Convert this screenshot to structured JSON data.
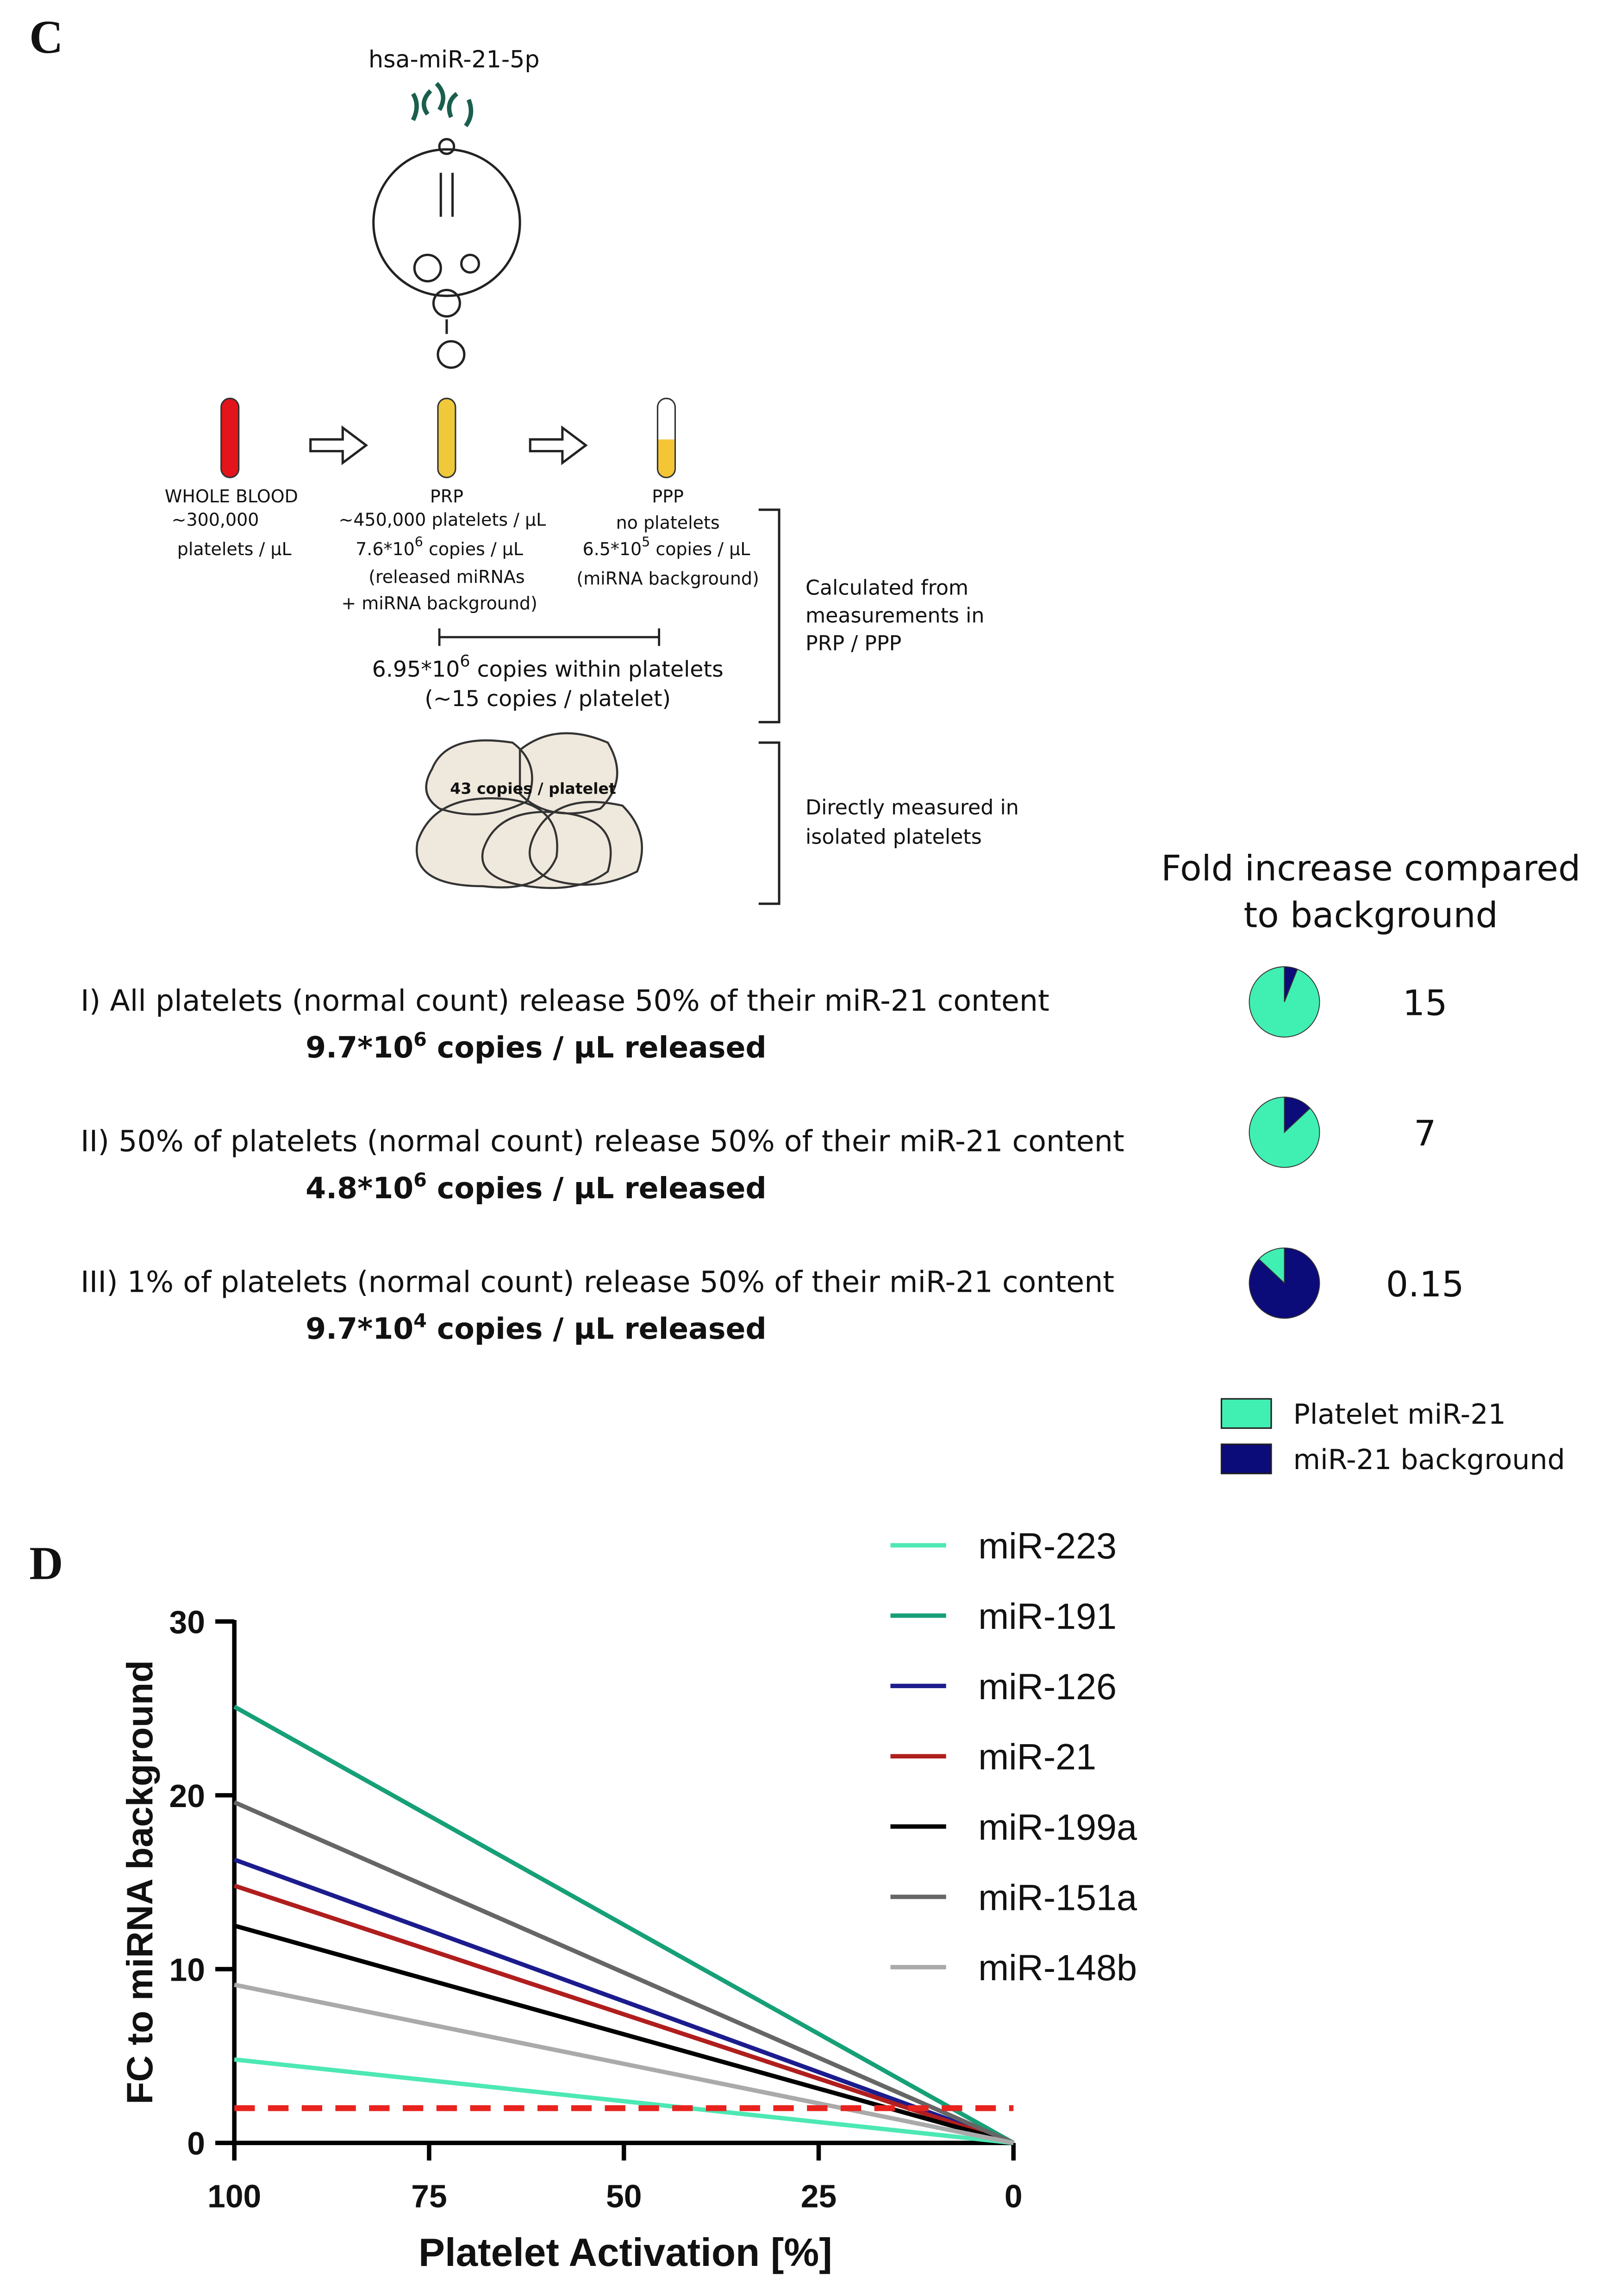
{
  "panel_c": {
    "label": "C",
    "mirna": "hsa-miR-21-5p",
    "whole_blood": {
      "name": "WHOLE BLOOD",
      "count": "~300,000",
      "unit": "platelets / µL"
    },
    "prp": {
      "name": "PRP",
      "count": "~450,000 platelets / µL",
      "copies": {
        "base": "7.6*10",
        "sup": "6",
        "rest": " copies / µL"
      },
      "note1": "(released miRNAs",
      "note2": "+ miRNA background)"
    },
    "ppp": {
      "name": "PPP",
      "count": "no platelets",
      "copies": {
        "base": "6.5*10",
        "sup": "5",
        "rest": " copies / µL"
      },
      "note1": "(miRNA background)"
    },
    "within": {
      "base": "6.95*10",
      "sup": "6",
      "rest": " copies within platelets",
      "note": "(~15 copies / platelet)"
    },
    "calc_note": [
      "Calculated from",
      "measurements in",
      "PRP / PPP"
    ],
    "isolated": "43 copies / platelet",
    "direct_note": [
      "Directly measured in",
      "isolated platelets"
    ],
    "fold_title": [
      "Fold increase compared",
      "to background"
    ],
    "pie_legend": [
      {
        "name": "Platelet miR-21",
        "color": "#40f0b2"
      },
      {
        "name": "miR-21 background",
        "color": "#0b0b7a"
      }
    ],
    "scenarios": [
      {
        "text": "I) All platelets (normal count) release 50% of their miR-21 content",
        "released": {
          "base": "9.7*10",
          "sup": "6",
          "rest": " copies / µL released"
        },
        "pie": [
          94,
          6
        ],
        "fold": 15
      },
      {
        "text": "II) 50% of platelets (normal count) release 50% of their miR-21 content",
        "released": {
          "base": "4.8*10",
          "sup": "6",
          "rest": " copies / µL released"
        },
        "pie": [
          87,
          13
        ],
        "fold": 7
      },
      {
        "text": "III) 1% of platelets (normal count) release 50% of their miR-21 content",
        "released": {
          "base": "9.7*10",
          "sup": "4",
          "rest": " copies / µL released"
        },
        "pie": [
          13,
          87
        ],
        "fold": 0.15
      }
    ]
  },
  "chart_data": {
    "type": "line",
    "panel_label": "D",
    "x_label": "Platelet Activation [%]",
    "y_label": "FC to miRNA background",
    "x": [
      100,
      0
    ],
    "xlim": [
      100,
      0
    ],
    "xticks": [
      100,
      75,
      50,
      25,
      0
    ],
    "ylim": [
      0,
      30
    ],
    "yticks": [
      0,
      10,
      20,
      30
    ],
    "series": [
      {
        "name": "miR-223",
        "color": "#4de8b4",
        "values": [
          4.8,
          0
        ]
      },
      {
        "name": "miR-191",
        "color": "#17a078",
        "values": [
          25.1,
          0
        ]
      },
      {
        "name": "miR-126",
        "color": "#1c1c8e",
        "values": [
          16.3,
          0
        ]
      },
      {
        "name": "miR-21",
        "color": "#b01e1e",
        "values": [
          14.8,
          0
        ]
      },
      {
        "name": "miR-199a",
        "color": "#000000",
        "values": [
          12.5,
          0
        ]
      },
      {
        "name": "miR-151a",
        "color": "#666666",
        "values": [
          19.6,
          0
        ]
      },
      {
        "name": "miR-148b",
        "color": "#aaaaaa",
        "values": [
          9.1,
          0
        ]
      }
    ],
    "reference_line": {
      "value": 2,
      "color": "#e8231e",
      "dashed": true
    }
  }
}
